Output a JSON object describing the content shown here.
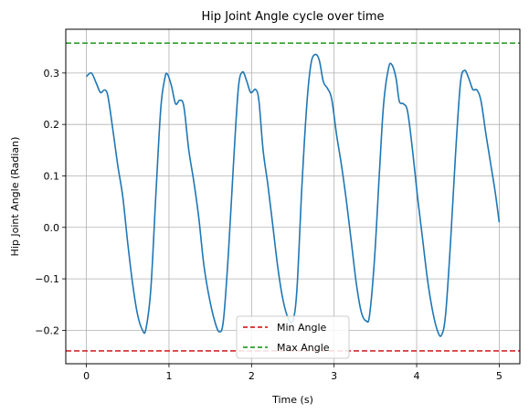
{
  "chart_data": {
    "type": "line",
    "title": "Hip Joint Angle cycle over time",
    "xlabel": "Time (s)",
    "ylabel": "Hip Joint Angle (Radian)",
    "xlim": [
      -0.25,
      5.25
    ],
    "ylim": [
      -0.265,
      0.385
    ],
    "x_ticks": [
      0,
      1,
      2,
      3,
      4,
      5
    ],
    "y_ticks": [
      -0.2,
      -0.1,
      0.0,
      0.1,
      0.2,
      0.3
    ],
    "x_tick_labels": [
      "0",
      "1",
      "2",
      "3",
      "4",
      "5"
    ],
    "y_tick_labels": [
      "−0.2",
      "−0.1",
      "0.0",
      "0.1",
      "0.2",
      "0.3"
    ],
    "grid": true,
    "legend_position": "bottom-center",
    "series": [
      {
        "color": "#1f77b4",
        "style": "solid",
        "points": [
          [
            0.0,
            0.293
          ],
          [
            0.06,
            0.3
          ],
          [
            0.12,
            0.28
          ],
          [
            0.17,
            0.262
          ],
          [
            0.22,
            0.267
          ],
          [
            0.26,
            0.255
          ],
          [
            0.32,
            0.19
          ],
          [
            0.38,
            0.12
          ],
          [
            0.44,
            0.06
          ],
          [
            0.5,
            -0.03
          ],
          [
            0.56,
            -0.11
          ],
          [
            0.62,
            -0.17
          ],
          [
            0.68,
            -0.2
          ],
          [
            0.72,
            -0.198
          ],
          [
            0.78,
            -0.12
          ],
          [
            0.84,
            0.06
          ],
          [
            0.9,
            0.23
          ],
          [
            0.95,
            0.29
          ],
          [
            0.98,
            0.298
          ],
          [
            1.03,
            0.275
          ],
          [
            1.08,
            0.24
          ],
          [
            1.13,
            0.247
          ],
          [
            1.18,
            0.235
          ],
          [
            1.24,
            0.15
          ],
          [
            1.3,
            0.09
          ],
          [
            1.36,
            0.02
          ],
          [
            1.42,
            -0.07
          ],
          [
            1.48,
            -0.13
          ],
          [
            1.55,
            -0.18
          ],
          [
            1.61,
            -0.203
          ],
          [
            1.66,
            -0.18
          ],
          [
            1.72,
            -0.05
          ],
          [
            1.78,
            0.12
          ],
          [
            1.84,
            0.27
          ],
          [
            1.89,
            0.302
          ],
          [
            1.94,
            0.285
          ],
          [
            1.99,
            0.262
          ],
          [
            2.05,
            0.268
          ],
          [
            2.09,
            0.245
          ],
          [
            2.14,
            0.15
          ],
          [
            2.2,
            0.08
          ],
          [
            2.26,
            0.0
          ],
          [
            2.32,
            -0.08
          ],
          [
            2.38,
            -0.14
          ],
          [
            2.44,
            -0.175
          ],
          [
            2.5,
            -0.182
          ],
          [
            2.55,
            -0.12
          ],
          [
            2.61,
            0.08
          ],
          [
            2.67,
            0.24
          ],
          [
            2.72,
            0.318
          ],
          [
            2.77,
            0.336
          ],
          [
            2.82,
            0.325
          ],
          [
            2.87,
            0.283
          ],
          [
            2.92,
            0.27
          ],
          [
            2.97,
            0.25
          ],
          [
            3.03,
            0.18
          ],
          [
            3.09,
            0.12
          ],
          [
            3.15,
            0.05
          ],
          [
            3.21,
            -0.03
          ],
          [
            3.27,
            -0.11
          ],
          [
            3.33,
            -0.165
          ],
          [
            3.39,
            -0.182
          ],
          [
            3.43,
            -0.17
          ],
          [
            3.49,
            -0.06
          ],
          [
            3.55,
            0.11
          ],
          [
            3.6,
            0.24
          ],
          [
            3.66,
            0.31
          ],
          [
            3.7,
            0.316
          ],
          [
            3.75,
            0.29
          ],
          [
            3.79,
            0.245
          ],
          [
            3.84,
            0.24
          ],
          [
            3.89,
            0.225
          ],
          [
            3.95,
            0.15
          ],
          [
            4.01,
            0.06
          ],
          [
            4.07,
            -0.02
          ],
          [
            4.13,
            -0.1
          ],
          [
            4.19,
            -0.16
          ],
          [
            4.25,
            -0.2
          ],
          [
            4.3,
            -0.21
          ],
          [
            4.35,
            -0.17
          ],
          [
            4.41,
            -0.03
          ],
          [
            4.47,
            0.14
          ],
          [
            4.53,
            0.28
          ],
          [
            4.58,
            0.305
          ],
          [
            4.63,
            0.29
          ],
          [
            4.68,
            0.268
          ],
          [
            4.73,
            0.267
          ],
          [
            4.78,
            0.245
          ],
          [
            4.84,
            0.18
          ],
          [
            4.9,
            0.12
          ],
          [
            4.95,
            0.07
          ],
          [
            5.0,
            0.01
          ]
        ]
      }
    ],
    "reference_lines": [
      {
        "name": "Min Angle",
        "y": -0.24,
        "color": "#d62728",
        "style": "dashed"
      },
      {
        "name": "Max Angle",
        "y": 0.358,
        "color": "#2ca02c",
        "style": "dashed"
      }
    ]
  }
}
